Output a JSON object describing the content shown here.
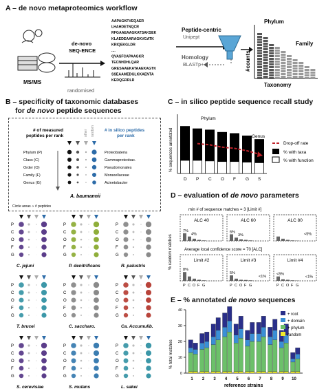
{
  "panelA": {
    "title": "A – de novo metaproteomics workflow",
    "msms": "MS/MS",
    "denovo": "de-novo",
    "seqence": "SEQ-ENCE",
    "randomised": "randomised",
    "sequences": [
      "AAPAGKFVEQAER",
      "LHAHDETNQCR",
      "RFGAAEAAGKATSAKSEK",
      "KLAEDEAARAGKVGATK",
      "KRIQEKGLDR",
      "....",
      "QVASFCAPAAGKR",
      "TECNHDHLQAR",
      "GRESAAEKATAAEKAGTK",
      "SSEAAMEDGLKKAENTA",
      "KEDQGRRLR"
    ],
    "peptideCentric": "Peptide-centric",
    "unipept": "Unipept",
    "homology": "Homology",
    "blastp": "BLASTp+",
    "phylum": "Phylum",
    "family": "Family",
    "counts": "#counts",
    "taxonomy": "Taxonomy"
  },
  "panelB": {
    "title1": "B – specificity of taxonomic databases",
    "title2_pre": "for ",
    "title2_em": "de novo",
    "title2_post": " peptide sequences",
    "measured1": "# of measured",
    "measured2": "peptides per rank",
    "other": "other",
    "random": "random",
    "insilico1": "# in silico peptides",
    "insilico2": "per rank",
    "ranks": [
      "Phylum (P)",
      "Class (C)",
      "Order (O)",
      "Family (F)",
      "Genus (G)"
    ],
    "taxa": [
      "Proteobateria",
      "Gammaproteobac.",
      "Pseudomonales",
      "Moraxellaceae",
      "Acinetobacter"
    ],
    "organism": "A. baumannii",
    "circle_note": "Circle areas ∝ # peptides",
    "rank_letters": [
      "P",
      "C",
      "O",
      "F",
      "G"
    ],
    "species": [
      "C. jejuni",
      "P. denitrificans",
      "R. palustris",
      "T. brucei",
      "C. saccharo.",
      "Ca. Accumulib.",
      "S. cerevisiae",
      "S. mutans",
      "L. sakei"
    ],
    "species_colors": [
      "#5b3d8a",
      "#8fae3a",
      "#8a8a8a",
      "#3c97a8",
      "#8a8a8a",
      "#b8433a",
      "#5b3d8a",
      "#3b7db1",
      "#3c97a8"
    ]
  },
  "panelC": {
    "title": "C – in silico peptide sequence recall study",
    "ylabel": "% sequences annotated",
    "phylum_label": "Phylum",
    "genus_label": "Genus",
    "legend": [
      "Drop-off rate",
      "% with taxa",
      "% with function"
    ],
    "chart_data": {
      "type": "bar",
      "categories": [
        "D",
        "P",
        "C",
        "O",
        "F",
        "G",
        "S"
      ],
      "series": [
        {
          "name": "% with taxa",
          "values": [
            80,
            76,
            74,
            70,
            68,
            64,
            58
          ]
        },
        {
          "name": "% with function",
          "values": [
            22,
            22,
            21,
            20,
            20,
            19,
            18
          ]
        }
      ],
      "ylabel": "% sequences annotated",
      "annotations": [
        "Phylum",
        "Genus",
        "Drop-off rate"
      ],
      "ylim": [
        0,
        100
      ],
      "colors": {
        "taxa": "#000000",
        "function": "#ffffff",
        "dropoff": "#c0222a"
      }
    }
  },
  "panelD": {
    "title_pre": "D – evaluation of ",
    "title_em": "de novo",
    "title_post": " parameters",
    "sub1": "min # of sequence matches = 3 [Limit #]",
    "sub2": "Average local confidence score = 70 [ALC]",
    "ylabel": "% random matches",
    "xcats": [
      "P",
      "C",
      "O",
      "F",
      "G"
    ],
    "chart_data": [
      {
        "type": "bar",
        "title": "ALC 40",
        "categories": [
          "P",
          "C",
          "O",
          "F",
          "G"
        ],
        "values": [
          7,
          4,
          2,
          1,
          0.5
        ],
        "annotations": [
          "7%",
          "4%"
        ]
      },
      {
        "type": "bar",
        "title": "ALC 60",
        "categories": [
          "P",
          "C",
          "O",
          "F",
          "G"
        ],
        "values": [
          6,
          3,
          1.5,
          1,
          0.5
        ],
        "annotations": [
          "6%",
          "3%"
        ]
      },
      {
        "type": "bar",
        "title": "ALC 80",
        "categories": [
          "P",
          "C",
          "O",
          "F",
          "G"
        ],
        "values": [
          4,
          2,
          1,
          0.5,
          0.3
        ],
        "annotations": [
          "<5%"
        ]
      },
      {
        "type": "bar",
        "title": "Limit #2",
        "categories": [
          "P",
          "C",
          "O",
          "F",
          "G"
        ],
        "values": [
          8,
          4,
          2,
          1,
          0.5
        ],
        "annotations": [
          "8%"
        ]
      },
      {
        "type": "bar",
        "title": "Limit #3",
        "categories": [
          "P",
          "C",
          "O",
          "F",
          "G"
        ],
        "values": [
          5,
          2,
          1,
          0.8,
          0.5
        ],
        "annotations": [
          "5%",
          "<1%"
        ]
      },
      {
        "type": "bar",
        "title": "Limit #4",
        "categories": [
          "P",
          "C",
          "O",
          "F",
          "G"
        ],
        "values": [
          4,
          1.5,
          1,
          0.5,
          0.3
        ],
        "annotations": [
          "<5%",
          "<1%"
        ]
      }
    ]
  },
  "panelE": {
    "title_pre": "E – % annotated ",
    "title_em": "de novo",
    "title_post": " sequences",
    "ylabel": "% total matches",
    "xlabel": "reference strains",
    "yticks": [
      "0",
      "10",
      "20",
      "30",
      "40"
    ],
    "legend": [
      "+ root",
      "+ domain",
      "+ phylum",
      "random"
    ],
    "chart_data": {
      "type": "bar",
      "stacked": true,
      "categories": [
        "1",
        "2",
        "3",
        "4",
        "5",
        "6",
        "7",
        "8",
        "9",
        "10"
      ],
      "groups": 2,
      "ylim": [
        0,
        40
      ],
      "colors": {
        "root": "#2a2f8a",
        "domain": "#3a8fd6",
        "phylum": "#6cc06a",
        "random": "#f2ea2a"
      },
      "series": [
        {
          "name": "random",
          "values": [
            [
              1,
              1
            ],
            [
              1,
              1
            ],
            [
              1,
              1
            ],
            [
              1,
              1
            ],
            [
              1,
              1
            ],
            [
              1,
              1
            ],
            [
              1,
              1
            ],
            [
              1,
              1
            ],
            [
              1,
              1
            ],
            [
              1,
              1
            ]
          ]
        },
        {
          "name": "+ phylum",
          "values": [
            [
              12,
              11
            ],
            [
              14,
              15
            ],
            [
              17,
              20
            ],
            [
              22,
              25
            ],
            [
              18,
              21
            ],
            [
              16,
              19
            ],
            [
              19,
              22
            ],
            [
              17,
              20
            ],
            [
              15,
              18
            ],
            [
              6,
              8
            ]
          ]
        },
        {
          "name": "+ domain",
          "values": [
            [
              3,
              3
            ],
            [
              4,
              4
            ],
            [
              5,
              6
            ],
            [
              6,
              7
            ],
            [
              5,
              6
            ],
            [
              4,
              5
            ],
            [
              5,
              6
            ],
            [
              5,
              6
            ],
            [
              4,
              5
            ],
            [
              2,
              3
            ]
          ]
        },
        {
          "name": "+ root",
          "values": [
            [
              5,
              4
            ],
            [
              6,
              6
            ],
            [
              8,
              8
            ],
            [
              9,
              9
            ],
            [
              7,
              8
            ],
            [
              6,
              7
            ],
            [
              7,
              7
            ],
            [
              6,
              7
            ],
            [
              7,
              7
            ],
            [
              4,
              4
            ]
          ]
        }
      ]
    }
  }
}
